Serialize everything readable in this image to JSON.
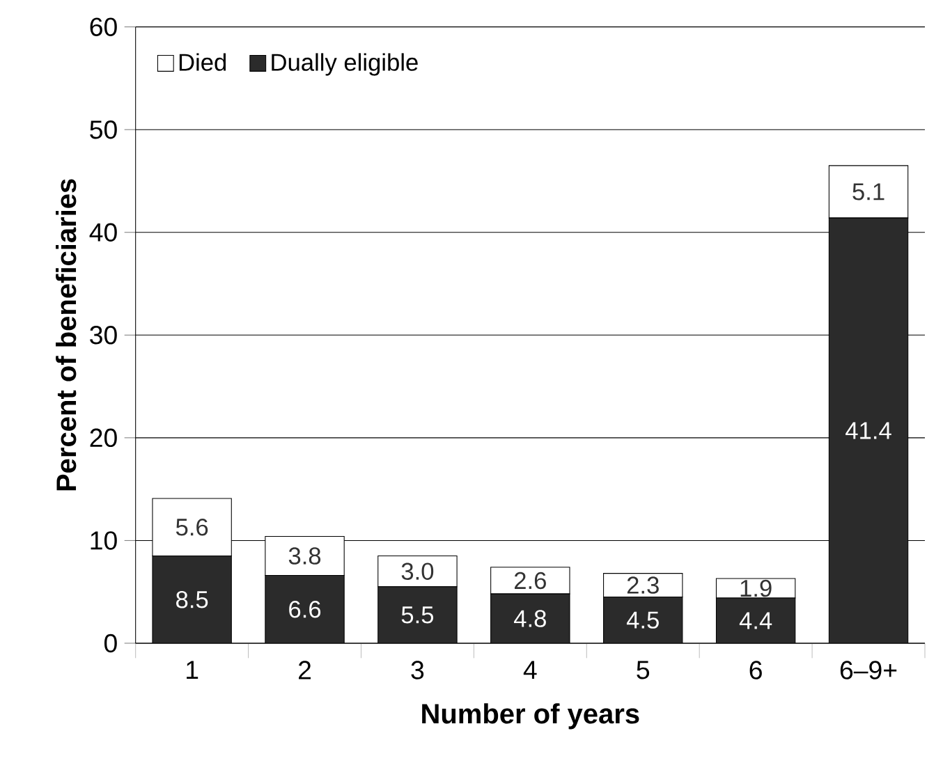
{
  "chart_data": {
    "type": "bar",
    "stacked": true,
    "xlabel": "Number of years",
    "ylabel": "Percent of beneficiaries",
    "categories": [
      "1",
      "2",
      "3",
      "4",
      "5",
      "6",
      "6–9+"
    ],
    "series": [
      {
        "name": "Dually eligible",
        "color": "#2b2b2b",
        "values": [
          8.5,
          6.6,
          5.5,
          4.8,
          4.5,
          4.4,
          41.4
        ],
        "value_labels": [
          "8.5",
          "6.6",
          "5.5",
          "4.8",
          "4.5",
          "4.4",
          "41.4"
        ]
      },
      {
        "name": "Died",
        "color": "#ffffff",
        "values": [
          5.6,
          3.8,
          3.0,
          2.6,
          2.3,
          1.9,
          5.1
        ],
        "value_labels": [
          "5.6",
          "3.8",
          "3.0",
          "2.6",
          "2.3",
          "1.9",
          "5.1"
        ]
      }
    ],
    "ylim": [
      0,
      60
    ],
    "yticks": [
      0,
      10,
      20,
      30,
      40,
      50,
      60
    ],
    "grid": "y",
    "legend": "top left"
  }
}
